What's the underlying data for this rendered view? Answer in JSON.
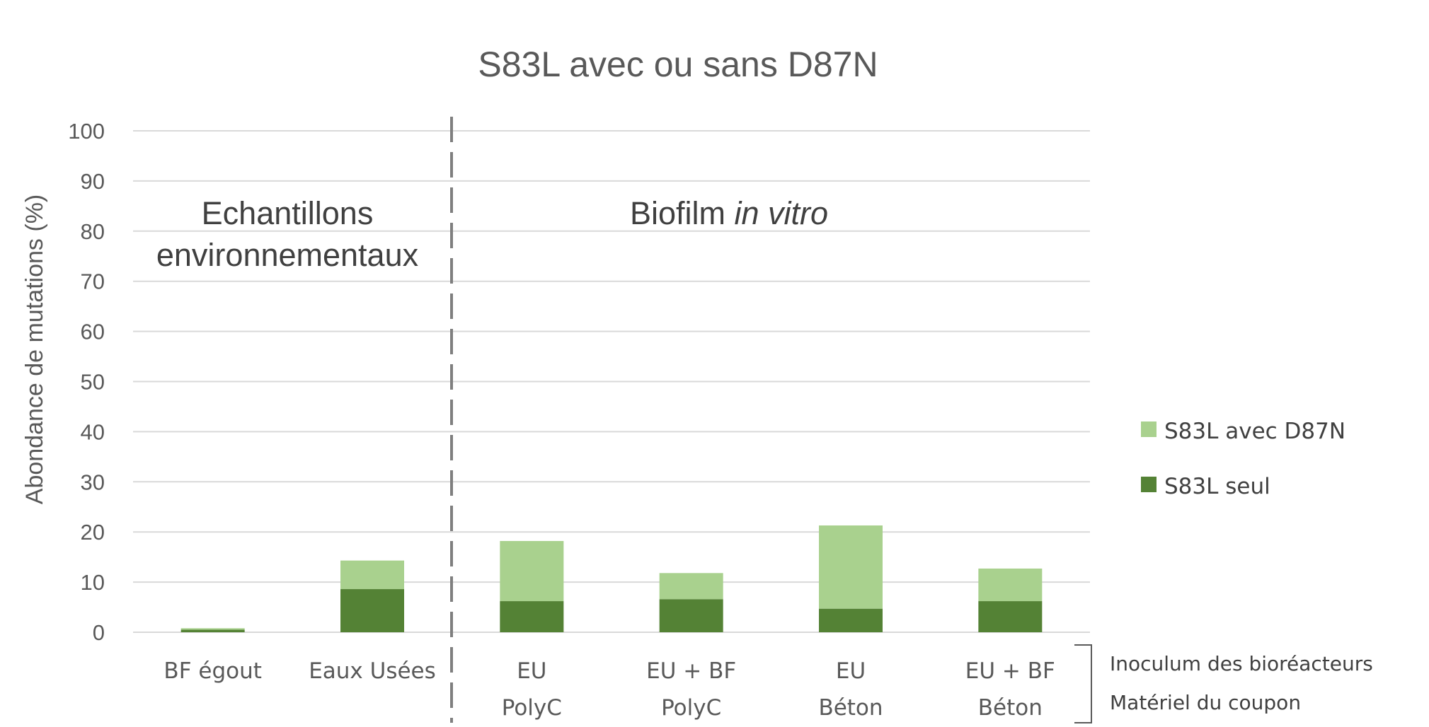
{
  "chart_data": {
    "type": "bar",
    "stacked": true,
    "title": "S83L avec ou sans D87N",
    "ylabel": "Abondance de mutations (%)",
    "ylim": [
      0,
      100
    ],
    "yticks": [
      0,
      10,
      20,
      30,
      40,
      50,
      60,
      70,
      80,
      90,
      100
    ],
    "grid": true,
    "categories": [
      [
        "BF égout"
      ],
      [
        "Eaux Usées"
      ],
      [
        "EU",
        "PolyC"
      ],
      [
        "EU + BF",
        "PolyC"
      ],
      [
        "EU",
        "Béton"
      ],
      [
        "EU + BF",
        "Béton"
      ]
    ],
    "series": [
      {
        "name": "S83L seul",
        "color": "#548235",
        "values": [
          0.5,
          8.6,
          6.2,
          6.6,
          4.7,
          6.2
        ]
      },
      {
        "name": "S83L avec D87N",
        "color": "#a9d18e",
        "values": [
          0.3,
          5.7,
          12.0,
          5.2,
          16.6,
          6.5
        ]
      }
    ],
    "legend_order": [
      "S83L avec D87N",
      "S83L seul"
    ],
    "legend_position": "right",
    "sections": [
      {
        "lines": [
          "Echantillons",
          "environnementaux"
        ],
        "italic_suffix": ""
      },
      {
        "lines": [
          "Biofilm "
        ],
        "italic_suffix": "in vitro"
      }
    ],
    "bracket_labels": [
      "Inoculum des bioréacteurs",
      "Matériel du coupon"
    ]
  }
}
